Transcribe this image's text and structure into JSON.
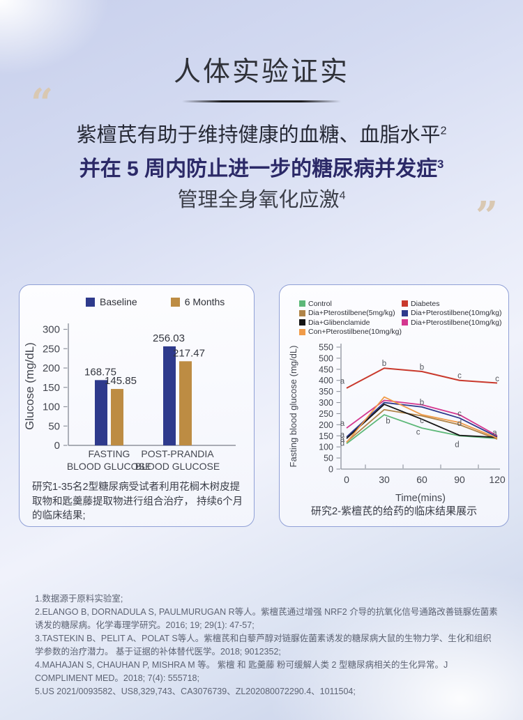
{
  "header": {
    "title": "人体实验证实"
  },
  "quote": {
    "open_mark": "“",
    "close_mark": "”",
    "lines": [
      {
        "text": "紫檀芪有助于维持健康的血糖、血脂水平",
        "sup": "2"
      },
      {
        "text": "并在 5 周内防止进一步的糖尿病并发症",
        "sup": "3"
      },
      {
        "text": "管理全身氧化应激",
        "sup": "4"
      }
    ]
  },
  "theme": {
    "card_border": "#90a0d6",
    "quote_mark": "#d9c8b2",
    "title_underline": "#1d1d1f"
  },
  "chart_data": [
    {
      "type": "bar",
      "title": "",
      "xlabel": "",
      "ylabel": "Glucose (mg/dL)",
      "ylim": [
        0,
        300
      ],
      "ytick_step": 50,
      "categories": [
        [
          "FASTING",
          "BLOOD GLUCOSE"
        ],
        [
          "POST-PRANDIA",
          "BLOOD GLUCOSE"
        ]
      ],
      "series": [
        {
          "name": "Baseline",
          "color": "#2e3a8c",
          "values": [
            168.75,
            256.03
          ]
        },
        {
          "name": "6 Months",
          "color": "#bd8c43",
          "values": [
            145.85,
            217.47
          ]
        }
      ],
      "caption": "研究1-35名2型糖尿病受试者利用花榈木树皮提取物和匙羹藤提取物进行组合治疗， 持续6个月的临床结果;"
    },
    {
      "type": "line",
      "xlabel": "Time(mins)",
      "ylabel": "Fasting blood glucose (mg/dL)",
      "ylim": [
        0,
        550
      ],
      "ytick_step": 50,
      "x": [
        0,
        30,
        60,
        90,
        120
      ],
      "xticks_minor": [
        15,
        45,
        75,
        105
      ],
      "series": [
        {
          "name": "Control",
          "color": "#5db878",
          "values": [
            115,
            245,
            185,
            150,
            138
          ]
        },
        {
          "name": "Diabetes",
          "color": "#c9392c",
          "values": [
            365,
            455,
            440,
            400,
            388
          ]
        },
        {
          "name": "Dia+Pterostilbene(5mg/kg)",
          "color": "#b08448",
          "values": [
            122,
            268,
            240,
            200,
            135
          ]
        },
        {
          "name": "Dia+Pterostilbene(10mg/kg)",
          "color": "#2e3a8c",
          "values": [
            145,
            300,
            280,
            230,
            145
          ]
        },
        {
          "name": "Dia+Glibenclamide",
          "color": "#141414",
          "values": [
            138,
            292,
            225,
            152,
            143
          ]
        },
        {
          "name": "Dia+Pterostilbene(10mg/kg)",
          "color": "#d4378f",
          "values": [
            185,
            310,
            290,
            245,
            150
          ]
        },
        {
          "name": "Con+Pterostilbene(10mg/kg)",
          "color": "#f09b48",
          "values": [
            120,
            325,
            245,
            210,
            140
          ]
        }
      ],
      "legend_cols": [
        [
          0,
          2,
          4,
          6
        ],
        [
          1,
          3,
          5
        ]
      ],
      "annotations": [
        {
          "t": "a",
          "x": 0,
          "y": 398
        },
        {
          "t": "b",
          "x": 30,
          "y": 478
        },
        {
          "t": "b",
          "x": 60,
          "y": 460
        },
        {
          "t": "c",
          "x": 90,
          "y": 422
        },
        {
          "t": "c",
          "x": 120,
          "y": 408
        },
        {
          "t": "a",
          "x": 0,
          "y": 207
        },
        {
          "t": "a",
          "x": 0,
          "y": 155
        },
        {
          "t": "a",
          "x": 0,
          "y": 135
        },
        {
          "t": "d",
          "x": 0,
          "y": 118
        },
        {
          "t": "b",
          "x": 33,
          "y": 218
        },
        {
          "t": "b",
          "x": 60,
          "y": 302
        },
        {
          "t": "c",
          "x": 60,
          "y": 220
        },
        {
          "t": "c",
          "x": 57,
          "y": 168
        },
        {
          "t": "c",
          "x": 90,
          "y": 252
        },
        {
          "t": "d",
          "x": 90,
          "y": 207
        },
        {
          "t": "d",
          "x": 88,
          "y": 112
        },
        {
          "t": "a",
          "x": 118,
          "y": 165
        }
      ],
      "caption": "研究2-紫檀芪的给药的临床结果展示"
    }
  ],
  "footnotes": [
    "1.数据源于原料实验室;",
    "2.ELANGO B, DORNADULA S, PAULMURUGAN R等人。紫檀芪通过增强 NRF2 介导的抗氧化信号通路改善链脲佐菌素诱发的糖尿病。化学毒理学研究。2016; 19; 29(1): 47-57;",
    "3.TASTEKIN B、PELIT A、POLAT S等人。紫檀芪和白藜芦醇对链脲佐菌素诱发的糖尿病大鼠的生物力学、生化和组织学参数的治疗潜力。 基于证据的补体替代医学。2018; 9012352;",
    "4.MAHAJAN S, CHAUHAN P, MISHRA M 等。 紫檀 和 匙羹藤 粉可缓解人类 2 型糖尿病相关的生化异常。J COMPLIMENT MED。2018; 7(4): 555718;",
    "5.US 2021/0093582、US8,329,743、CA3076739、ZL202080072290.4、1011504;"
  ]
}
